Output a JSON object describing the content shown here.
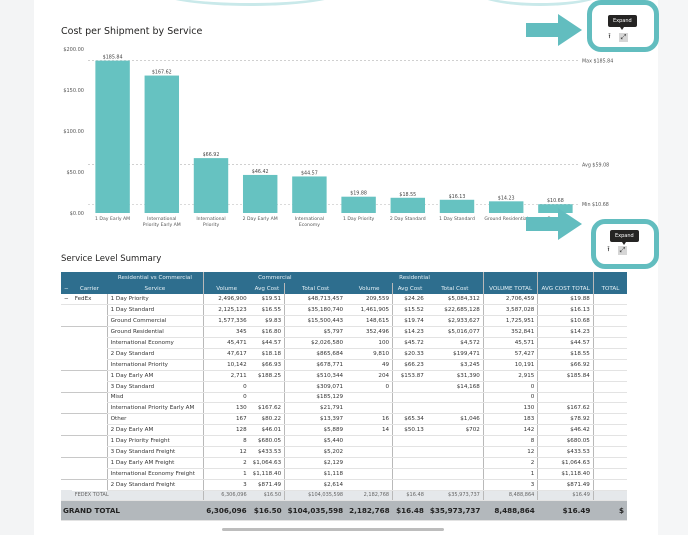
{
  "chart_data": {
    "type": "bar",
    "title": "Cost per Shipment by Service",
    "xlabel": "",
    "ylabel": "",
    "ylim": [
      0,
      200
    ],
    "y_ticks": [
      "$0.00",
      "$50.00",
      "$100.00",
      "$150.00",
      "$200.00"
    ],
    "y_tick_values": [
      0,
      50,
      100,
      150,
      200
    ],
    "grid": false,
    "bar_color": "#66c2c1",
    "categories": [
      "1 Day Early AM",
      "International Priority Early AM",
      "International Priority",
      "2 Day Early AM",
      "International Economy",
      "1 Day Priority",
      "2 Day Standard",
      "1 Day Standard",
      "Ground Residential",
      "Ground Commercial"
    ],
    "category_lines": [
      [
        "1 Day Early AM"
      ],
      [
        "International",
        "Priority Early AM"
      ],
      [
        "International",
        "Priority"
      ],
      [
        "2 Day Early AM"
      ],
      [
        "International",
        "Economy"
      ],
      [
        "1 Day Priority"
      ],
      [
        "2 Day Standard"
      ],
      [
        "1 Day Standard"
      ],
      [
        "Ground Residential"
      ],
      [
        "Ground",
        "Commercial"
      ]
    ],
    "values": [
      185.84,
      167.62,
      66.92,
      46.42,
      44.57,
      19.88,
      18.55,
      16.13,
      14.23,
      10.68
    ],
    "data_labels": [
      "$185.84",
      "$167.62",
      "$66.92",
      "$46.42",
      "$44.57",
      "$19.88",
      "$18.55",
      "$16.13",
      "$14.23",
      "$10.68"
    ],
    "reference_lines": [
      {
        "name": "max",
        "label": "Max $185.84",
        "value": 185.84
      },
      {
        "name": "avg",
        "label": "Avg $59.08",
        "value": 59.08
      },
      {
        "name": "min",
        "label": "Min $10.68",
        "value": 10.68
      }
    ]
  },
  "visual_header": {
    "tooltip": "Expand",
    "icons": [
      "export-icon",
      "expand-icon"
    ]
  },
  "annotation_color": "#62bdbf",
  "table": {
    "title": "Service Level Summary",
    "header_group": {
      "toggle": "−",
      "row_group": "Residential vs Commercial",
      "commercial": "Commercial",
      "residential": "Residential"
    },
    "columns": {
      "toggle": "−",
      "carrier": "Carrier",
      "service": "Service",
      "c_volume": "Volume",
      "c_avg": "Avg Cost",
      "c_total": "Total Cost",
      "r_volume": "Volume",
      "r_avg": "Avg Cost",
      "r_total": "Total Cost",
      "vol_total": "VOLUME TOTAL",
      "avg_total": "AVG COST TOTAL",
      "total": "TOTAL"
    },
    "carrier_toggle": "−",
    "carrier": "FedEx",
    "rows": [
      {
        "service": "1 Day Priority",
        "c_volume": "2,496,900",
        "c_avg": "$19.51",
        "c_total": "$48,713,457",
        "r_volume": "209,559",
        "r_avg": "$24.26",
        "r_total": "$5,084,312",
        "vol_total": "2,706,459",
        "avg_total": "$19.88"
      },
      {
        "service": "1 Day Standard",
        "c_volume": "2,125,123",
        "c_avg": "$16.55",
        "c_total": "$35,180,740",
        "r_volume": "1,461,905",
        "r_avg": "$15.52",
        "r_total": "$22,685,128",
        "vol_total": "3,587,028",
        "avg_total": "$16.13"
      },
      {
        "service": "Ground Commercial",
        "c_volume": "1,577,336",
        "c_avg": "$9.83",
        "c_total": "$15,500,443",
        "r_volume": "148,615",
        "r_avg": "$19.74",
        "r_total": "$2,933,627",
        "vol_total": "1,725,951",
        "avg_total": "$10.68"
      },
      {
        "service": "Ground Residential",
        "c_volume": "345",
        "c_avg": "$16.80",
        "c_total": "$5,797",
        "r_volume": "352,496",
        "r_avg": "$14.23",
        "r_total": "$5,016,077",
        "vol_total": "352,841",
        "avg_total": "$14.23"
      },
      {
        "service": "International Economy",
        "c_volume": "45,471",
        "c_avg": "$44.57",
        "c_total": "$2,026,580",
        "r_volume": "100",
        "r_avg": "$45.72",
        "r_total": "$4,572",
        "vol_total": "45,571",
        "avg_total": "$44.57"
      },
      {
        "service": "2 Day Standard",
        "c_volume": "47,617",
        "c_avg": "$18.18",
        "c_total": "$865,684",
        "r_volume": "9,810",
        "r_avg": "$20.33",
        "r_total": "$199,471",
        "vol_total": "57,427",
        "avg_total": "$18.55"
      },
      {
        "service": "International Priority",
        "c_volume": "10,142",
        "c_avg": "$66.93",
        "c_total": "$678,771",
        "r_volume": "49",
        "r_avg": "$66.23",
        "r_total": "$3,245",
        "vol_total": "10,191",
        "avg_total": "$66.92"
      },
      {
        "service": "1 Day Early AM",
        "c_volume": "2,711",
        "c_avg": "$188.25",
        "c_total": "$510,344",
        "r_volume": "204",
        "r_avg": "$153.87",
        "r_total": "$31,390",
        "vol_total": "2,915",
        "avg_total": "$185.84"
      },
      {
        "service": "3 Day Standard",
        "c_volume": "0",
        "c_avg": "",
        "c_total": "$309,071",
        "r_volume": "0",
        "r_avg": "",
        "r_total": "$14,168",
        "vol_total": "0",
        "avg_total": ""
      },
      {
        "service": "Misd",
        "c_volume": "0",
        "c_avg": "",
        "c_total": "$185,129",
        "r_volume": "",
        "r_avg": "",
        "r_total": "",
        "vol_total": "0",
        "avg_total": ""
      },
      {
        "service": "International Priority Early AM",
        "c_volume": "130",
        "c_avg": "$167.62",
        "c_total": "$21,791",
        "r_volume": "",
        "r_avg": "",
        "r_total": "",
        "vol_total": "130",
        "avg_total": "$167.62"
      },
      {
        "service": "Other",
        "c_volume": "167",
        "c_avg": "$80.22",
        "c_total": "$13,397",
        "r_volume": "16",
        "r_avg": "$65.34",
        "r_total": "$1,046",
        "vol_total": "183",
        "avg_total": "$78.92"
      },
      {
        "service": "2 Day Early AM",
        "c_volume": "128",
        "c_avg": "$46.01",
        "c_total": "$5,889",
        "r_volume": "14",
        "r_avg": "$50.13",
        "r_total": "$702",
        "vol_total": "142",
        "avg_total": "$46.42"
      },
      {
        "service": "1 Day Priority Freight",
        "c_volume": "8",
        "c_avg": "$680.05",
        "c_total": "$5,440",
        "r_volume": "",
        "r_avg": "",
        "r_total": "",
        "vol_total": "8",
        "avg_total": "$680.05"
      },
      {
        "service": "3 Day Standard Freight",
        "c_volume": "12",
        "c_avg": "$433.53",
        "c_total": "$5,202",
        "r_volume": "",
        "r_avg": "",
        "r_total": "",
        "vol_total": "12",
        "avg_total": "$433.53"
      },
      {
        "service": "1 Day Early AM Freight",
        "c_volume": "2",
        "c_avg": "$1,064.63",
        "c_total": "$2,129",
        "r_volume": "",
        "r_avg": "",
        "r_total": "",
        "vol_total": "2",
        "avg_total": "$1,064.63"
      },
      {
        "service": "International Economy Freight",
        "c_volume": "1",
        "c_avg": "$1,118.40",
        "c_total": "$1,118",
        "r_volume": "",
        "r_avg": "",
        "r_total": "",
        "vol_total": "1",
        "avg_total": "$1,118.40"
      },
      {
        "service": "2 Day Standard Freight",
        "c_volume": "3",
        "c_avg": "$871.49",
        "c_total": "$2,614",
        "r_volume": "",
        "r_avg": "",
        "r_total": "",
        "vol_total": "3",
        "avg_total": "$871.49"
      }
    ],
    "subtotal": {
      "label": "FEDEX TOTAL",
      "c_volume": "6,306,096",
      "c_avg": "$16.50",
      "c_total": "$104,035,598",
      "r_volume": "2,182,768",
      "r_avg": "$16.48",
      "r_total": "$35,973,737",
      "vol_total": "8,488,864",
      "avg_total": "$16.49"
    },
    "grand_total": {
      "label": "GRAND TOTAL",
      "c_volume": "6,306,096",
      "c_avg": "$16.50",
      "c_total": "$104,035,598",
      "r_volume": "2,182,768",
      "r_avg": "$16.48",
      "r_total": "$35,973,737",
      "vol_total": "8,488,864",
      "avg_total": "$16.49",
      "total_partial": "$"
    }
  }
}
